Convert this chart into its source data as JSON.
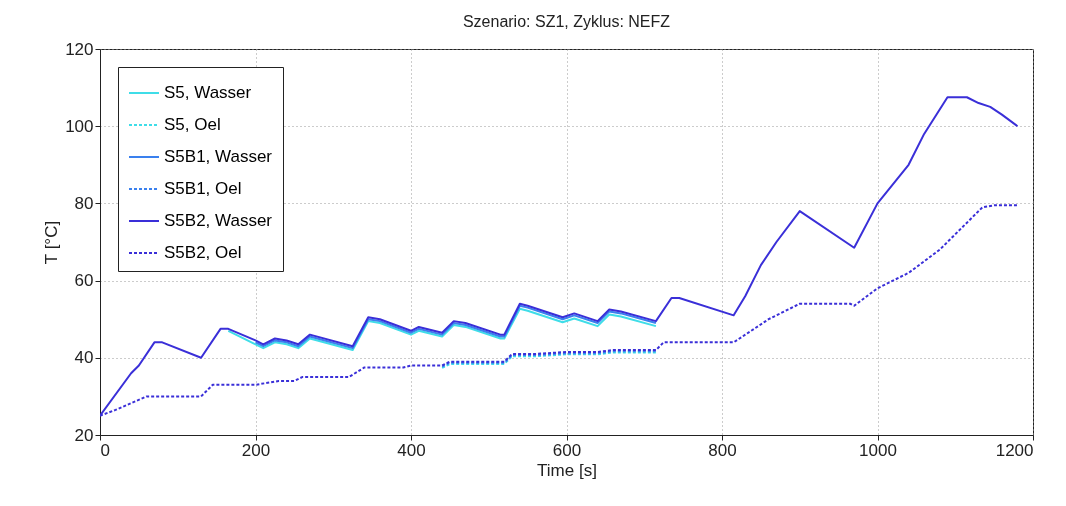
{
  "chart_data": {
    "type": "line",
    "title": "Szenario: SZ1, Zyklus: NEFZ",
    "xlabel": "Time [s]",
    "ylabel": "T [°C]",
    "xlim": [
      0,
      1200
    ],
    "xticks": [
      0,
      200,
      400,
      600,
      800,
      1000,
      1200
    ],
    "ylim": [
      20,
      120
    ],
    "yticks": [
      20,
      40,
      60,
      80,
      100,
      120
    ],
    "grid": true,
    "legend": "top left",
    "series": [
      {
        "name": "S5, Wasser",
        "color": "#3fdde8",
        "line_style": "solid",
        "x": [
          165,
          200,
          210,
          225,
          240,
          255,
          270,
          325,
          345,
          360,
          400,
          410,
          440,
          455,
          470,
          515,
          520,
          540,
          550,
          595,
          610,
          640,
          655,
          670,
          715
        ],
        "values": [
          47,
          43.5,
          42.5,
          44,
          43.5,
          42.5,
          45,
          42,
          49.5,
          49,
          46,
          47,
          45.5,
          48.5,
          48,
          45,
          45,
          52.7,
          52.2,
          49.2,
          50.2,
          48.2,
          51.2,
          50.7,
          48.2
        ]
      },
      {
        "name": "S5, Oel",
        "color": "#3fdde8",
        "line_style": "dashed",
        "x": [
          440,
          450,
          520,
          530,
          560,
          600,
          640,
          660,
          715
        ],
        "values": [
          37.4,
          38.4,
          38.4,
          40.4,
          40.4,
          40.9,
          40.9,
          41.4,
          41.4
        ]
      },
      {
        "name": "S5B1, Wasser",
        "color": "#3a80ee",
        "line_style": "solid",
        "x": [
          200,
          210,
          225,
          240,
          255,
          270,
          325,
          345,
          360,
          400,
          410,
          440,
          455,
          470,
          515,
          520,
          540,
          550,
          595,
          610,
          640,
          655,
          670,
          715
        ],
        "values": [
          44,
          43,
          44.5,
          44,
          43,
          45.5,
          42.5,
          50,
          49.5,
          46.5,
          47.5,
          46,
          49,
          48.5,
          45.5,
          45.5,
          53.5,
          53,
          50,
          51,
          49,
          52,
          51.5,
          49
        ]
      },
      {
        "name": "S5B1, Oel",
        "color": "#3a80ee",
        "line_style": "dashed",
        "x": [
          440,
          450,
          520,
          530,
          560,
          600,
          640,
          660,
          715
        ],
        "values": [
          37.7,
          38.7,
          38.7,
          40.7,
          40.7,
          41.2,
          41.2,
          41.7,
          41.7
        ]
      },
      {
        "name": "S5B2, Wasser",
        "color": "#3a2fd8",
        "line_style": "solid",
        "x": [
          0,
          40,
          50,
          70,
          80,
          130,
          155,
          165,
          200,
          210,
          225,
          240,
          255,
          270,
          325,
          345,
          360,
          400,
          410,
          440,
          455,
          470,
          515,
          520,
          540,
          550,
          595,
          610,
          640,
          655,
          670,
          715,
          735,
          745,
          815,
          830,
          850,
          870,
          900,
          970,
          1000,
          1040,
          1060,
          1090,
          1115,
          1130,
          1145,
          1160,
          1180
        ],
        "values": [
          25,
          36,
          38,
          44,
          44,
          40,
          47.5,
          47.5,
          44.5,
          43.5,
          45,
          44.5,
          43.5,
          46,
          43,
          50.5,
          50,
          47,
          48,
          46.5,
          49.5,
          49,
          46,
          46,
          54,
          53.5,
          50.5,
          51.5,
          49.5,
          52.5,
          52,
          49.5,
          55.5,
          55.5,
          51,
          56,
          64,
          70,
          78,
          68.5,
          80,
          90,
          98,
          107.5,
          107.5,
          106,
          105,
          103,
          100
        ]
      },
      {
        "name": "S5B2, Oel",
        "color": "#3a2fd8",
        "line_style": "dashed",
        "x": [
          0,
          20,
          60,
          130,
          145,
          200,
          230,
          250,
          260,
          320,
          340,
          390,
          400,
          440,
          450,
          520,
          530,
          560,
          600,
          640,
          660,
          715,
          725,
          815,
          830,
          860,
          900,
          965,
          970,
          1000,
          1040,
          1080,
          1135,
          1150,
          1180
        ],
        "values": [
          25,
          26.5,
          30,
          30,
          33,
          33,
          34,
          34,
          35,
          35,
          37.5,
          37.5,
          38,
          38,
          39,
          39,
          41,
          41,
          41.5,
          41.5,
          42,
          42,
          44,
          44,
          46,
          50,
          54,
          54,
          53.5,
          58,
          62,
          68,
          79,
          79.5,
          79.5
        ]
      }
    ]
  }
}
